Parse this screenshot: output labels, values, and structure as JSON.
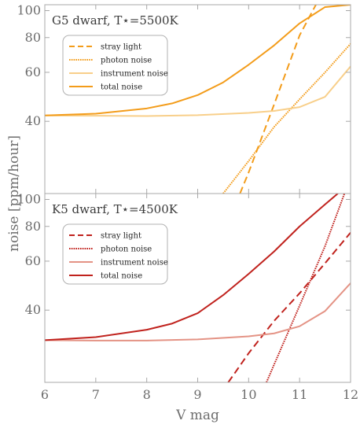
{
  "figure": {
    "xlabel": "V mag",
    "ylabel": "noise [ppm/hour]"
  },
  "chart_data": [
    {
      "type": "line",
      "title": "G5 dwarf, T⋆=5500K",
      "xlim": [
        6,
        12
      ],
      "ylim": [
        22,
        105
      ],
      "log_y": true,
      "xticks": [
        "6",
        "7",
        "8",
        "9",
        "10",
        "11",
        "12"
      ],
      "yticks": [
        40,
        60,
        80,
        100
      ],
      "legend_position": "top-left",
      "series": [
        {
          "name": "stray light",
          "style": "dashed",
          "color": "#f39c1a",
          "x": [
            9.83,
            10.0,
            10.5,
            11.0,
            11.32
          ],
          "y": [
            22,
            26.2,
            46.0,
            81.5,
            105
          ]
        },
        {
          "name": "photon noise",
          "style": "dotted",
          "color": "#f39c1a",
          "x": [
            9.5,
            10.0,
            10.5,
            11.0,
            11.5,
            12.0
          ],
          "y": [
            22,
            28.8,
            38.2,
            48.0,
            60.0,
            76.0
          ]
        },
        {
          "name": "instrument noise",
          "style": "solid",
          "color": "#f8cf8a",
          "x": [
            6,
            7,
            8,
            9,
            10,
            10.5,
            11,
            11.5,
            12
          ],
          "y": [
            42,
            41.9,
            41.8,
            42.1,
            42.9,
            43.6,
            45.0,
            49.0,
            63.0
          ]
        },
        {
          "name": "total noise",
          "style": "solid",
          "color": "#f39c1a",
          "x": [
            6,
            7,
            8,
            8.5,
            9,
            9.5,
            10,
            10.5,
            11,
            11.5,
            12
          ],
          "y": [
            42,
            42.6,
            44.5,
            46.4,
            49.7,
            55.2,
            63.9,
            75.0,
            90.0,
            103.0,
            105
          ]
        }
      ]
    },
    {
      "type": "line",
      "title": "K5 dwarf, T⋆=4500K",
      "xlim": [
        6,
        12
      ],
      "ylim": [
        22,
        105
      ],
      "log_y": true,
      "xticks": [
        "6",
        "7",
        "8",
        "9",
        "10",
        "11",
        "12"
      ],
      "yticks": [
        40,
        60,
        80,
        100
      ],
      "legend_position": "top-left",
      "series": [
        {
          "name": "stray light",
          "style": "dashed",
          "color": "#c0221d",
          "x": [
            9.6,
            10.0,
            10.5,
            11.0,
            11.5,
            12.0
          ],
          "y": [
            22,
            28.0,
            36.6,
            46.0,
            59.0,
            76.0
          ]
        },
        {
          "name": "photon noise",
          "style": "dotted",
          "color": "#c0221d",
          "x": [
            10.35,
            10.5,
            11.0,
            11.5,
            11.88
          ],
          "y": [
            22,
            25.5,
            41.5,
            68.0,
            105
          ]
        },
        {
          "name": "instrument noise",
          "style": "solid",
          "color": "#e49385",
          "x": [
            6,
            7,
            8,
            9,
            10,
            10.5,
            11,
            11.5,
            12
          ],
          "y": [
            31.2,
            31.1,
            31.1,
            31.4,
            32.2,
            33.0,
            35.0,
            39.7,
            50.0
          ]
        },
        {
          "name": "total noise",
          "style": "solid",
          "color": "#c0221d",
          "x": [
            6,
            7,
            8,
            8.5,
            9,
            9.5,
            10,
            10.5,
            11,
            11.5,
            11.75
          ],
          "y": [
            31.2,
            32.0,
            34.0,
            35.8,
            39.0,
            45.3,
            54.0,
            65.0,
            80.0,
            96.0,
            105
          ]
        }
      ]
    }
  ]
}
